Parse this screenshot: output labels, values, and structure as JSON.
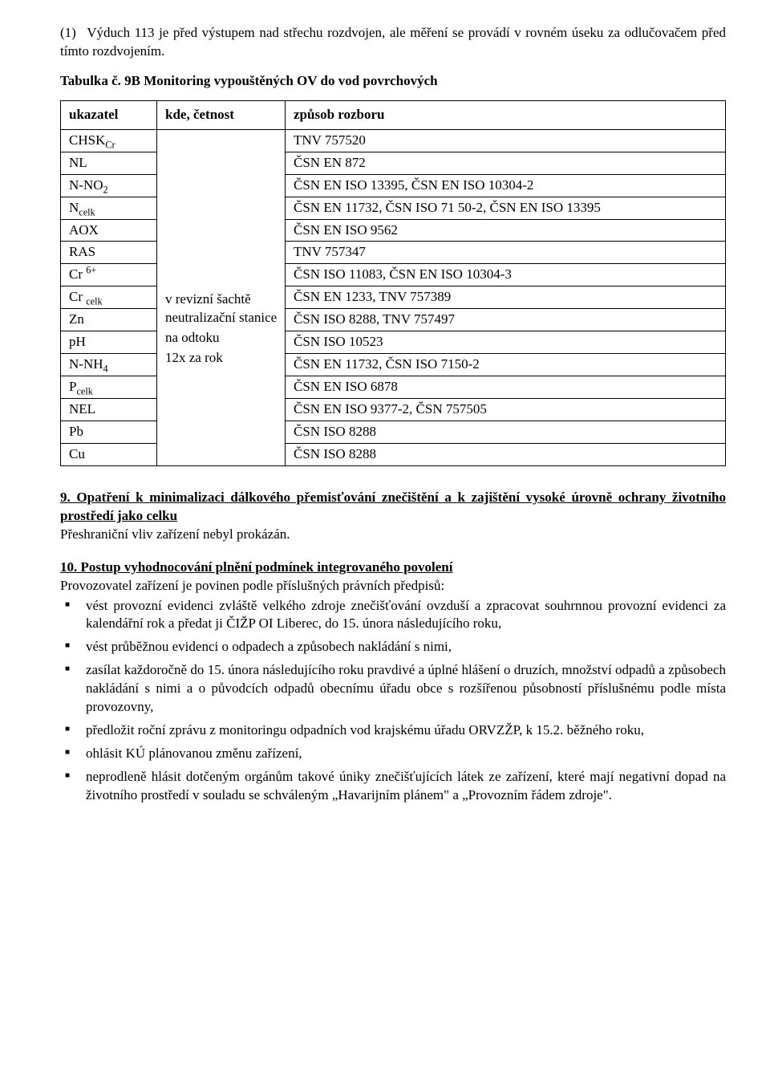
{
  "note": {
    "num": "(1)",
    "text": "Výduch 113 je před výstupem nad střechu rozdvojen, ale měření se provádí v rovném úseku za odlučovačem před tímto rozdvojením."
  },
  "table_caption": "Tabulka č. 9B  Monitoring vypouštěných OV do vod povrchových",
  "table": {
    "head": {
      "c1": "ukazatel",
      "c2": "kde, četnost",
      "c3": "způsob rozboru"
    },
    "loc1": "v revizní šachtě neutralizační stanice",
    "loc2": "na odtoku",
    "loc3": "12x za rok",
    "rows": [
      {
        "u_pre": "CHSK",
        "u_sub": "Cr",
        "z": "TNV 757520"
      },
      {
        "u_pre": "NL",
        "z": "ČSN EN 872"
      },
      {
        "u_pre": "N-NO",
        "u_sub": "2",
        "z": "ČSN EN ISO 13395, ČSN EN ISO 10304-2"
      },
      {
        "u_pre": "N",
        "u_sub": "celk",
        "z": "ČSN EN 11732, ČSN ISO 71 50-2, ČSN EN ISO 13395"
      },
      {
        "u_pre": "AOX",
        "z": "ČSN EN ISO 9562"
      },
      {
        "u_pre": "RAS",
        "z": "TNV 757347"
      },
      {
        "u_pre": "Cr ",
        "u_sup": "6+",
        "z": "ČSN ISO 11083, ČSN EN ISO 10304-3"
      },
      {
        "u_pre": "Cr ",
        "u_sub": "celk",
        "z": "ČSN EN 1233, TNV 757389"
      },
      {
        "u_pre": "Zn",
        "z": "ČSN ISO 8288, TNV 757497"
      },
      {
        "u_pre": "pH",
        "z": "ČSN ISO 10523"
      },
      {
        "u_pre": "N-NH",
        "u_sub": "4",
        "z": "ČSN EN 11732, ČSN ISO 7150-2"
      },
      {
        "u_pre": "P",
        "u_sub": "celk",
        "z": "ČSN EN ISO 6878"
      },
      {
        "u_pre": "NEL",
        "z": "ČSN EN ISO 9377-2, ČSN 757505"
      },
      {
        "u_pre": "Pb",
        "z": "ČSN ISO 8288"
      },
      {
        "u_pre": "Cu",
        "z": "ČSN ISO 8288"
      }
    ]
  },
  "section9": {
    "heading": "9. Opatření k minimalizaci dálkového přemisťování znečištění a k zajištění vysoké úrovně ochrany životního prostředí jako celku",
    "body": "Přeshraniční vliv zařízení  nebyl prokázán."
  },
  "section10": {
    "heading": "10. Postup vyhodnocování plnění podmínek integrovaného povolení",
    "intro": "Provozovatel zařízení je povinen podle příslušných právních předpisů:",
    "bullets": [
      "vést provozní evidenci zvláště velkého zdroje znečišťování ovzduší a zpracovat souhrnnou provozní evidenci za kalendářní rok a předat ji ČIŽP OI Liberec, do 15. února následujícího roku,",
      "vést průběžnou evidenci o odpadech a způsobech nakládání s nimi,",
      "zasílat každoročně do 15. února následujícího roku pravdivé a úplné hlášení o druzích, množství odpadů a způsobech nakládání s nimi a o původcích odpadů obecnímu úřadu obce s rozšířenou působností příslušnému podle místa provozovny,",
      "předložit roční zprávu z monitoringu odpadních vod krajskému úřadu ORVZŽP, k 15.2. běžného roku,",
      "ohlásit KÚ plánovanou změnu zařízení,",
      "neprodleně hlásit dotčeným orgánům takové  úniky znečišťujících látek ze zařízení, které mají negativní dopad na životního prostředí v souladu se schváleným „Havarijním plánem\" a „Provozním řádem zdroje\"."
    ]
  }
}
